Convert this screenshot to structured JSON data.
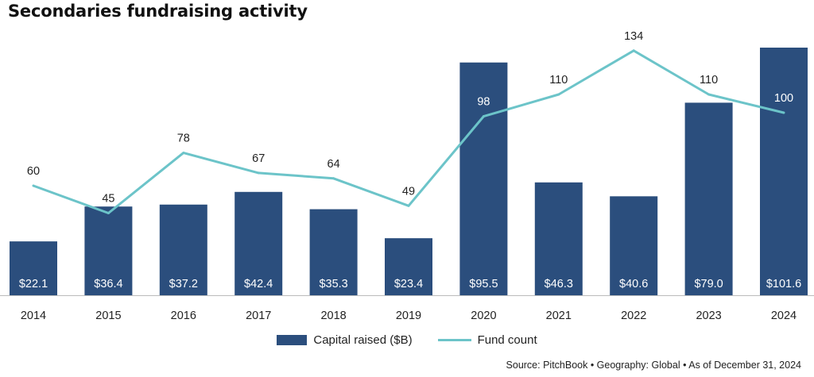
{
  "title": "Secondaries fundraising activity",
  "source": "Source: PitchBook  •  Geography: Global  •  As of December 31, 2024",
  "colors": {
    "bar": "#2b4e7d",
    "line": "#6cc4c9",
    "bar_label": "#ffffff"
  },
  "chart_data": {
    "type": "bar",
    "categories": [
      "2014",
      "2015",
      "2016",
      "2017",
      "2018",
      "2019",
      "2020",
      "2021",
      "2022",
      "2023",
      "2024"
    ],
    "series": [
      {
        "name": "Capital raised ($B)",
        "type": "bar",
        "values": [
          22.1,
          36.4,
          37.2,
          42.4,
          35.3,
          23.4,
          95.5,
          46.3,
          40.6,
          79.0,
          101.6
        ],
        "labels": [
          "$22.1",
          "$36.4",
          "$37.2",
          "$42.4",
          "$35.3",
          "$23.4",
          "$95.5",
          "$46.3",
          "$40.6",
          "$79.0",
          "$101.6"
        ]
      },
      {
        "name": "Fund count",
        "type": "line",
        "values": [
          60,
          45,
          78,
          67,
          64,
          49,
          98,
          110,
          134,
          110,
          100
        ],
        "labels": [
          "60",
          "45",
          "78",
          "67",
          "64",
          "49",
          "98",
          "110",
          "134",
          "110",
          "100"
        ]
      }
    ],
    "legend_position": "bottom",
    "grid": false
  }
}
